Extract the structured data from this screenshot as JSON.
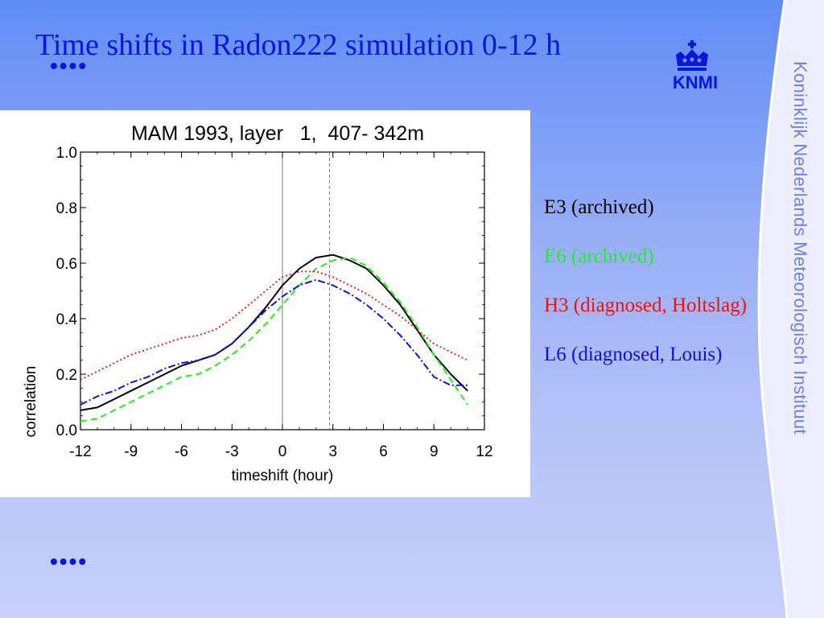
{
  "slide": {
    "title": "Time shifts in Radon222 simulation 0-12 h",
    "bullet_top": "••••",
    "bullet_bottom": "••••",
    "logo_text": "KNMI",
    "side_text": "Koninklijk Nederlands Meteorologisch Instituut"
  },
  "legend": [
    {
      "label": "E3 (archived)",
      "color": "#000000"
    },
    {
      "label": "E6 (archived)",
      "color": "#22ee22"
    },
    {
      "label": "H3 (diagnosed, Holtslag)",
      "color": "#ee1111"
    },
    {
      "label": "L6 (diagnosed, Louis)",
      "color": "#1111dd"
    }
  ],
  "chart_data": {
    "type": "line",
    "title": "MAM 1993, layer   1,  407- 342m",
    "xlabel": "timeshift (hour)",
    "ylabel": "correlation",
    "xlim": [
      -12,
      12
    ],
    "ylim": [
      0.0,
      1.0
    ],
    "xticks": [
      "-12",
      "-9",
      "-6",
      "-3",
      "0",
      "3",
      "6",
      "9",
      "12"
    ],
    "yticks": [
      "0.0",
      "0.2",
      "0.4",
      "0.6",
      "0.8",
      "1.0"
    ],
    "vlines": [
      0,
      2.8
    ],
    "x": [
      -12,
      -11,
      -10,
      -9,
      -8,
      -7,
      -6,
      -5,
      -4,
      -3,
      -2,
      -1,
      0,
      1,
      2,
      3,
      4,
      5,
      6,
      7,
      8,
      9,
      10,
      11
    ],
    "series": [
      {
        "name": "E3 (archived)",
        "color": "#000000",
        "dash": "solid",
        "values": [
          0.07,
          0.08,
          0.11,
          0.14,
          0.17,
          0.2,
          0.23,
          0.25,
          0.27,
          0.31,
          0.37,
          0.44,
          0.52,
          0.58,
          0.62,
          0.63,
          0.61,
          0.58,
          0.52,
          0.45,
          0.36,
          0.27,
          0.2,
          0.14
        ]
      },
      {
        "name": "E6 (archived)",
        "color": "#22ee22",
        "dash": "8,5",
        "values": [
          0.03,
          0.04,
          0.07,
          0.1,
          0.13,
          0.16,
          0.19,
          0.2,
          0.23,
          0.27,
          0.32,
          0.38,
          0.45,
          0.52,
          0.58,
          0.61,
          0.62,
          0.59,
          0.53,
          0.46,
          0.37,
          0.27,
          0.18,
          0.09
        ]
      },
      {
        "name": "H3 (diagnosed, Holtslag)",
        "color": "#ee1111",
        "dash": "2,3",
        "values": [
          0.18,
          0.21,
          0.24,
          0.27,
          0.29,
          0.31,
          0.33,
          0.34,
          0.36,
          0.4,
          0.45,
          0.5,
          0.55,
          0.57,
          0.57,
          0.55,
          0.52,
          0.49,
          0.45,
          0.41,
          0.36,
          0.31,
          0.28,
          0.25
        ]
      },
      {
        "name": "L6 (diagnosed, Louis)",
        "color": "#1111dd",
        "dash": "9,3,2,3",
        "values": [
          0.09,
          0.12,
          0.14,
          0.17,
          0.19,
          0.22,
          0.24,
          0.25,
          0.27,
          0.31,
          0.37,
          0.43,
          0.48,
          0.52,
          0.54,
          0.52,
          0.49,
          0.45,
          0.4,
          0.34,
          0.27,
          0.19,
          0.16,
          0.16
        ]
      }
    ],
    "legend_position": "outside-right"
  }
}
